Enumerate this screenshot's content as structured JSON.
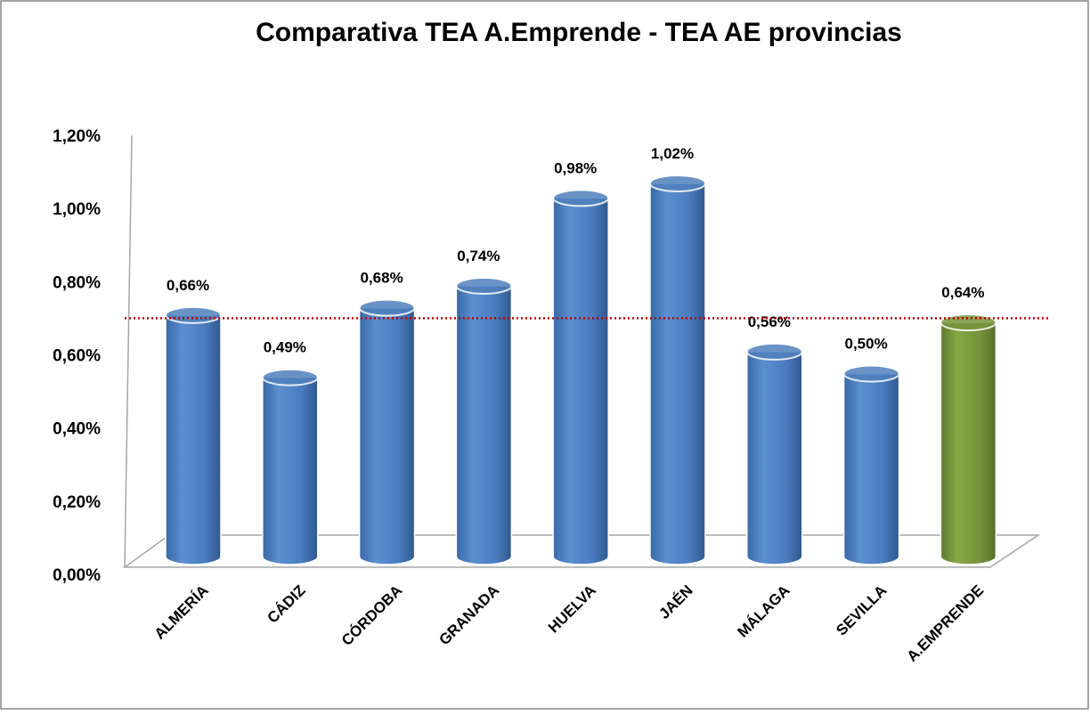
{
  "chart_data": {
    "type": "bar",
    "title": "Comparativa TEA  A.Emprende - TEA  AE provincias",
    "categories": [
      "ALMERÍA",
      "CÁDIZ",
      "CÓRDOBA",
      "GRANADA",
      "HUELVA",
      "JAÉN",
      "MÁLAGA",
      "SEVILLA",
      "A.EMPRENDE"
    ],
    "values": [
      0.66,
      0.49,
      0.68,
      0.74,
      0.98,
      1.02,
      0.56,
      0.5,
      0.64
    ],
    "value_labels": [
      "0,66%",
      "0,49%",
      "0,68%",
      "0,74%",
      "0,98%",
      "1,02%",
      "0,56%",
      "0,50%",
      "0,64%"
    ],
    "colors": [
      "#4f81bd",
      "#4f81bd",
      "#4f81bd",
      "#4f81bd",
      "#4f81bd",
      "#4f81bd",
      "#4f81bd",
      "#4f81bd",
      "#77933c"
    ],
    "ylim": [
      0,
      1.2
    ],
    "yticks": [
      {
        "value": 0,
        "label": "0,00%"
      },
      {
        "value": 0.2,
        "label": "0,20%"
      },
      {
        "value": 0.4,
        "label": "0,40%"
      },
      {
        "value": 0.6,
        "label": "0,60%"
      },
      {
        "value": 0.8,
        "label": "0,80%"
      },
      {
        "value": 1.0,
        "label": "1,00%"
      },
      {
        "value": 1.2,
        "label": "1,20%"
      }
    ],
    "reference_line": {
      "value": 0.7,
      "color": "#c00000"
    },
    "grid": false
  }
}
